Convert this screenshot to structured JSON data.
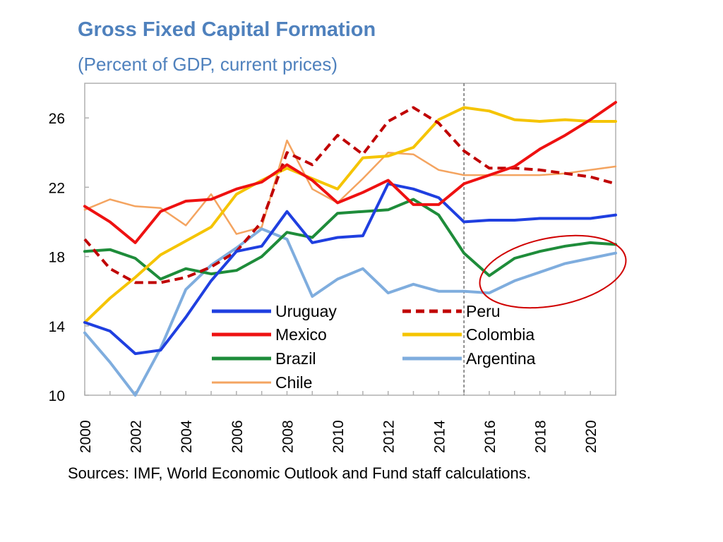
{
  "chart_data": {
    "type": "line",
    "title": "Gross Fixed Capital Formation",
    "subtitle": "(Percent of GDP, current prices)",
    "source": "Sources: IMF, World Economic Outlook and Fund staff calculations.",
    "xlabel": "",
    "ylabel": "",
    "xlim": [
      2000,
      2021
    ],
    "ylim": [
      10,
      28
    ],
    "x_ticks": [
      "2000",
      "2002",
      "2004",
      "2006",
      "2008",
      "2010",
      "2012",
      "2014",
      "2016",
      "2018",
      "2020"
    ],
    "y_ticks": [
      "10",
      "14",
      "18",
      "22",
      "26"
    ],
    "grid": false,
    "legend_position": "bottom-center, inside plot",
    "projection_divider_year": 2015,
    "annotation": "red ellipse around the Brazil and Argentina lines, 2016-2021",
    "x": [
      2000,
      2001,
      2002,
      2003,
      2004,
      2005,
      2006,
      2007,
      2008,
      2009,
      2010,
      2011,
      2012,
      2013,
      2014,
      2015,
      2016,
      2017,
      2018,
      2019,
      2020,
      2021
    ],
    "series": [
      {
        "name": "Uruguay",
        "color": "#1f3fe0",
        "dash": false,
        "values": [
          14.2,
          13.7,
          12.4,
          12.6,
          14.5,
          16.6,
          18.3,
          18.6,
          20.6,
          18.8,
          19.1,
          19.2,
          22.2,
          21.9,
          21.4,
          20.0,
          20.1,
          20.1,
          20.2,
          20.2,
          20.2,
          20.4
        ]
      },
      {
        "name": "Peru",
        "color": "#c00000",
        "dash": true,
        "values": [
          19.0,
          17.3,
          16.5,
          16.5,
          16.8,
          17.4,
          18.3,
          20.0,
          24.0,
          23.3,
          25.0,
          23.9,
          25.8,
          26.6,
          25.7,
          24.1,
          23.1,
          23.1,
          23.0,
          22.8,
          22.6,
          22.2
        ]
      },
      {
        "name": "Mexico",
        "color": "#ee1111",
        "dash": false,
        "values": [
          20.9,
          20.0,
          18.8,
          20.6,
          21.2,
          21.3,
          21.9,
          22.3,
          23.3,
          22.4,
          21.1,
          21.7,
          22.4,
          21.0,
          21.0,
          22.2,
          22.7,
          23.2,
          24.2,
          25.0,
          25.9,
          26.9
        ]
      },
      {
        "name": "Colombia",
        "color": "#f5c400",
        "dash": false,
        "values": [
          14.2,
          15.6,
          16.8,
          18.1,
          18.9,
          19.7,
          21.6,
          22.4,
          23.1,
          22.5,
          21.9,
          23.7,
          23.8,
          24.3,
          25.9,
          26.6,
          26.4,
          25.9,
          25.8,
          25.9,
          25.8,
          25.8
        ]
      },
      {
        "name": "Brazil",
        "color": "#1e8c3a",
        "dash": false,
        "values": [
          18.3,
          18.4,
          17.9,
          16.7,
          17.3,
          17.0,
          17.2,
          18.0,
          19.4,
          19.1,
          20.5,
          20.6,
          20.7,
          21.3,
          20.4,
          18.2,
          16.9,
          17.9,
          18.3,
          18.6,
          18.8,
          18.7
        ]
      },
      {
        "name": "Argentina",
        "color": "#7fadde",
        "dash": false,
        "values": [
          13.6,
          11.9,
          10.0,
          12.7,
          16.1,
          17.5,
          18.5,
          19.6,
          19.0,
          15.7,
          16.7,
          17.3,
          15.9,
          16.4,
          16.0,
          16.0,
          15.9,
          16.6,
          17.1,
          17.6,
          17.9,
          18.2
        ]
      },
      {
        "name": "Chile",
        "color": "#f4a460",
        "dash": false,
        "values": [
          20.7,
          21.3,
          20.9,
          20.8,
          19.8,
          21.6,
          19.3,
          19.7,
          24.7,
          21.9,
          21.1,
          22.5,
          24.0,
          23.9,
          23.0,
          22.7,
          22.7,
          22.7,
          22.7,
          22.8,
          23.0,
          23.2
        ]
      }
    ]
  }
}
